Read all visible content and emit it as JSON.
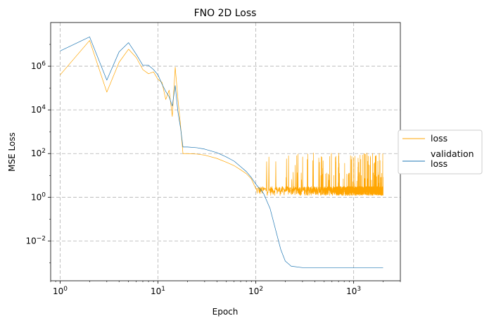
{
  "chart_data": {
    "type": "line",
    "title": "FNO 2D Loss",
    "xlabel": "Epoch",
    "ylabel": "MSE Loss",
    "xscale": "log",
    "yscale": "log",
    "xlim": [
      0.8,
      3000
    ],
    "ylim": [
      0.00015,
      100000000
    ],
    "grid": true,
    "legend_position": "right (outside, center)",
    "x_ticks": [
      {
        "value": 1,
        "base": "10",
        "exp": "0"
      },
      {
        "value": 10,
        "base": "10",
        "exp": "1"
      },
      {
        "value": 100,
        "base": "10",
        "exp": "2"
      },
      {
        "value": 1000,
        "base": "10",
        "exp": "3"
      }
    ],
    "y_ticks": [
      {
        "value": 0.01,
        "base": "10",
        "exp": "−2"
      },
      {
        "value": 1,
        "base": "10",
        "exp": "0"
      },
      {
        "value": 100,
        "base": "10",
        "exp": "2"
      },
      {
        "value": 10000,
        "base": "10",
        "exp": "4"
      },
      {
        "value": 1000000,
        "base": "10",
        "exp": "6"
      }
    ],
    "series": [
      {
        "name": "loss",
        "color": "#ffa500",
        "points": [
          [
            1,
            400000
          ],
          [
            2,
            15000000
          ],
          [
            3,
            65000
          ],
          [
            4,
            1500000
          ],
          [
            5,
            6000000
          ],
          [
            6,
            2500000
          ],
          [
            7,
            700000
          ],
          [
            8,
            450000
          ],
          [
            9,
            550000
          ],
          [
            10,
            250000
          ],
          [
            11,
            180000
          ],
          [
            12,
            30000
          ],
          [
            13,
            80000
          ],
          [
            14,
            5000
          ],
          [
            15,
            900000
          ],
          [
            16,
            30000
          ],
          [
            17,
            2000
          ],
          [
            18,
            100
          ],
          [
            20,
            100
          ],
          [
            25,
            95
          ],
          [
            30,
            85
          ],
          [
            40,
            60
          ],
          [
            50,
            40
          ],
          [
            60,
            28
          ],
          [
            70,
            18
          ],
          [
            80,
            12
          ],
          [
            90,
            7
          ],
          [
            100,
            4
          ],
          [
            120,
            2.5
          ],
          [
            150,
            1.8
          ],
          [
            200,
            1.5
          ],
          [
            300,
            1.3
          ],
          [
            500,
            1.2
          ],
          [
            1000,
            1.2
          ],
          [
            2000,
            1.2
          ]
        ],
        "noise": {
          "from_epoch": 100,
          "to_epoch": 2000,
          "floor": 1.2,
          "spike_max": 110
        }
      },
      {
        "name": "validation\nloss",
        "color": "#1f77b4",
        "points": [
          [
            1,
            5000000
          ],
          [
            2,
            22000000
          ],
          [
            3,
            230000
          ],
          [
            4,
            4500000
          ],
          [
            5,
            12000000
          ],
          [
            6,
            3500000
          ],
          [
            7,
            1100000
          ],
          [
            8,
            1100000
          ],
          [
            9,
            700000
          ],
          [
            10,
            400000
          ],
          [
            11,
            150000
          ],
          [
            12,
            70000
          ],
          [
            13,
            40000
          ],
          [
            14,
            15000
          ],
          [
            15,
            130000
          ],
          [
            16,
            8000
          ],
          [
            17,
            1500
          ],
          [
            18,
            200
          ],
          [
            20,
            200
          ],
          [
            25,
            185
          ],
          [
            30,
            160
          ],
          [
            40,
            110
          ],
          [
            50,
            70
          ],
          [
            60,
            45
          ],
          [
            70,
            25
          ],
          [
            80,
            15
          ],
          [
            90,
            8
          ],
          [
            100,
            4
          ],
          [
            120,
            1.5
          ],
          [
            140,
            0.3
          ],
          [
            160,
            0.03
          ],
          [
            180,
            0.004
          ],
          [
            200,
            0.0012
          ],
          [
            230,
            0.0007
          ],
          [
            300,
            0.0006
          ],
          [
            500,
            0.0006
          ],
          [
            1000,
            0.0006
          ],
          [
            2000,
            0.0006
          ]
        ]
      }
    ]
  }
}
